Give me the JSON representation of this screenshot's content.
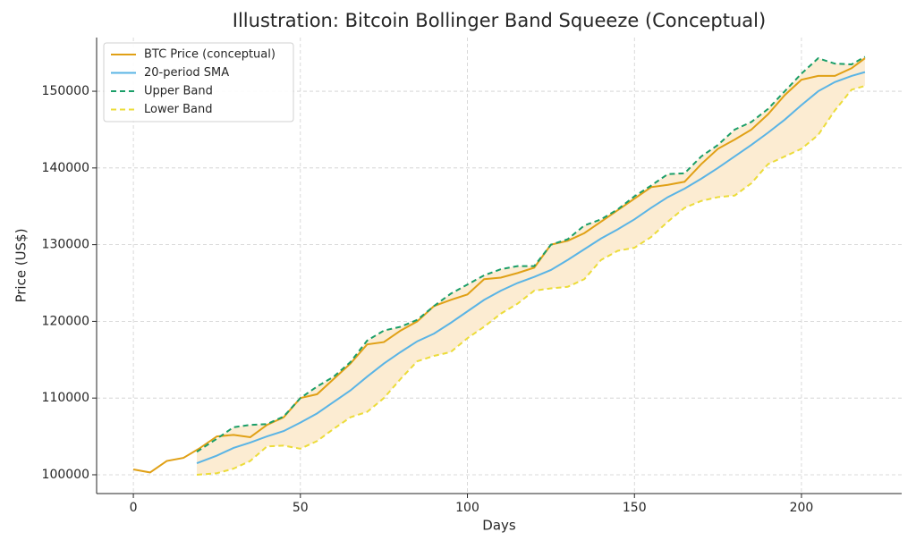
{
  "chart_data": {
    "type": "line",
    "title": "Illustration: Bitcoin Bollinger Band Squeeze (Conceptual)",
    "x_label": "Days",
    "y_label": "Price (US$)",
    "xlim": [
      -11,
      230
    ],
    "ylim": [
      97550,
      157000
    ],
    "xticks": [
      0,
      50,
      100,
      150,
      200
    ],
    "yticks": [
      100000,
      110000,
      120000,
      130000,
      140000,
      150000
    ],
    "grid": true,
    "legend": "upper left",
    "band_fill": "#fcecd2",
    "series": [
      {
        "name": "BTC Price (conceptual)",
        "color": "#e0a015",
        "dash": false,
        "x": [
          0,
          5,
          10,
          15,
          20,
          25,
          30,
          35,
          40,
          45,
          50,
          55,
          60,
          65,
          70,
          75,
          80,
          85,
          90,
          95,
          100,
          105,
          110,
          115,
          120,
          125,
          130,
          135,
          140,
          145,
          150,
          155,
          160,
          165,
          170,
          175,
          180,
          185,
          190,
          195,
          200,
          205,
          210,
          215,
          219
        ],
        "values": [
          100700,
          100300,
          101800,
          102200,
          103500,
          105000,
          105200,
          104900,
          106500,
          107500,
          110000,
          110500,
          112500,
          114500,
          117000,
          117300,
          118800,
          120000,
          122000,
          122800,
          123500,
          125500,
          125700,
          126300,
          127000,
          130000,
          130500,
          131500,
          133000,
          134500,
          136000,
          137500,
          137800,
          138200,
          140500,
          142500,
          143700,
          145000,
          147000,
          149500,
          151500,
          152000,
          152000,
          153000,
          154300
        ]
      },
      {
        "name": "20-period SMA",
        "color": "#5ab4e5",
        "dash": false,
        "x": [
          19,
          25,
          30,
          35,
          40,
          45,
          50,
          55,
          60,
          65,
          70,
          75,
          80,
          85,
          90,
          95,
          100,
          105,
          110,
          115,
          120,
          125,
          130,
          135,
          140,
          145,
          150,
          155,
          160,
          165,
          170,
          175,
          180,
          185,
          190,
          195,
          200,
          205,
          210,
          215,
          219
        ],
        "values": [
          101500,
          102500,
          103500,
          104200,
          105000,
          105700,
          106800,
          108000,
          109500,
          111000,
          112800,
          114500,
          116000,
          117400,
          118400,
          119800,
          121300,
          122800,
          124000,
          125000,
          125800,
          126700,
          128000,
          129400,
          130800,
          132000,
          133300,
          134800,
          136200,
          137300,
          138600,
          140000,
          141500,
          143000,
          144600,
          146300,
          148200,
          150000,
          151200,
          152000,
          152500
        ]
      },
      {
        "name": "Upper Band",
        "color": "#1a9e68",
        "dash": true,
        "x": [
          19,
          25,
          30,
          35,
          40,
          45,
          50,
          55,
          60,
          65,
          70,
          75,
          80,
          85,
          90,
          95,
          100,
          105,
          110,
          115,
          120,
          125,
          130,
          135,
          140,
          145,
          150,
          155,
          160,
          165,
          170,
          175,
          180,
          185,
          190,
          195,
          200,
          205,
          210,
          215,
          219
        ],
        "values": [
          103000,
          104700,
          106200,
          106500,
          106600,
          107600,
          110000,
          111500,
          112800,
          114700,
          117500,
          118800,
          119300,
          120200,
          122000,
          123600,
          124800,
          126000,
          126800,
          127200,
          127200,
          130000,
          130700,
          132500,
          133300,
          134600,
          136300,
          137700,
          139200,
          139300,
          141500,
          143000,
          145000,
          146000,
          147700,
          150000,
          152300,
          154300,
          153600,
          153500,
          154500
        ]
      },
      {
        "name": "Lower Band",
        "color": "#ecdc3a",
        "dash": true,
        "x": [
          19,
          25,
          30,
          35,
          40,
          45,
          50,
          55,
          60,
          65,
          70,
          75,
          80,
          85,
          90,
          95,
          100,
          105,
          110,
          115,
          120,
          125,
          130,
          135,
          140,
          145,
          150,
          155,
          160,
          165,
          170,
          175,
          180,
          185,
          190,
          195,
          200,
          205,
          210,
          215,
          219
        ],
        "values": [
          100000,
          100200,
          100800,
          101800,
          103700,
          103800,
          103400,
          104400,
          106000,
          107500,
          108200,
          110000,
          112500,
          114800,
          115500,
          116000,
          117800,
          119300,
          121000,
          122300,
          124000,
          124300,
          124500,
          125500,
          128000,
          129200,
          129600,
          131000,
          133000,
          134800,
          135700,
          136200,
          136400,
          138000,
          140500,
          141500,
          142500,
          144300,
          147500,
          150200,
          150700
        ]
      }
    ]
  }
}
